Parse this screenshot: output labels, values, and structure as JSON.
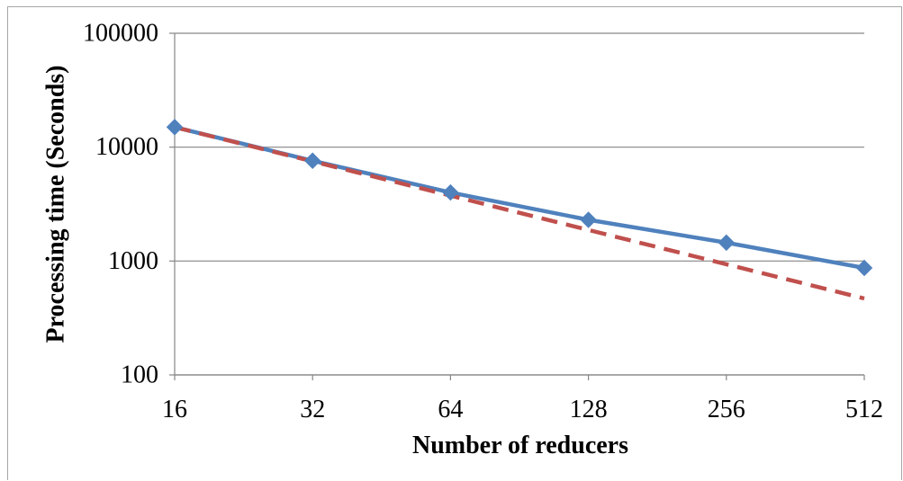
{
  "chart_data": {
    "type": "line",
    "xlabel": "Number of reducers",
    "ylabel": "Processing time (Seconds)",
    "categories": [
      "16",
      "32",
      "64",
      "128",
      "256",
      "512"
    ],
    "yscale": "log",
    "ylim": [
      100,
      100000
    ],
    "yticks": [
      100,
      1000,
      10000,
      100000
    ],
    "grid": true,
    "legend": "none",
    "series": [
      {
        "values": [
          15000,
          7600,
          4000,
          2300,
          1450,
          870
        ],
        "color": "#4F81BD",
        "line_style": "solid",
        "marker": "diamond"
      },
      {
        "values": [
          15000,
          7500,
          3750,
          1875,
          937.5,
          468.75
        ],
        "color": "#C0504D",
        "line_style": "dashed",
        "marker": "none"
      }
    ]
  }
}
